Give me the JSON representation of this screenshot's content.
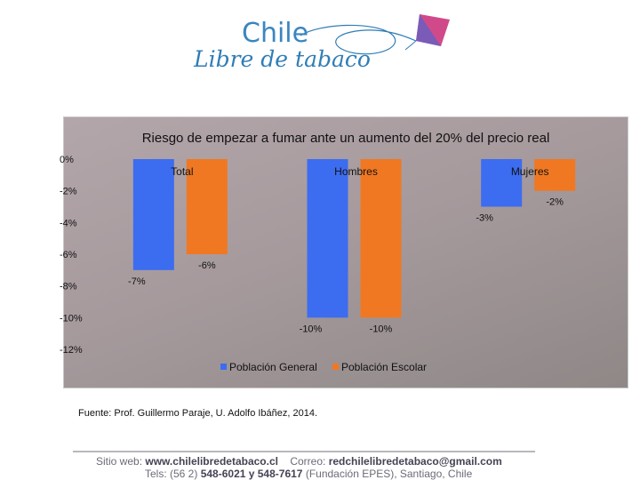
{
  "logo": {
    "line1": "Chile",
    "line2": "Libre de tabaco"
  },
  "chart_data": {
    "type": "bar",
    "title": "Riesgo de empezar a fumar ante un aumento del 20% del precio real",
    "categories": [
      "Total",
      "Hombres",
      "Mujeres"
    ],
    "series": [
      {
        "name": "Población General",
        "color": "#3c6cf0",
        "values": [
          -7,
          -10,
          -3
        ],
        "labels": [
          "-7%",
          "-10%",
          "-3%"
        ]
      },
      {
        "name": "Población Escolar",
        "color": "#f07822",
        "values": [
          -6,
          -10,
          -2
        ],
        "labels": [
          "-6%",
          "-10%",
          "-2%"
        ]
      }
    ],
    "ylim": [
      -12,
      0
    ],
    "yticks": [
      "0%",
      "-2%",
      "-4%",
      "-6%",
      "-8%",
      "-10%",
      "-12%"
    ],
    "legend": "bottom"
  },
  "source": "Fuente: Prof. Guillermo Paraje, U. Adolfo Ibáñez, 2014.",
  "footer": {
    "web_label": "Sitio web:",
    "web_value": "www.chilelibredetabaco.cl",
    "mail_label": "Correo:",
    "mail_value": "redchilelibredetabaco@gmail.com",
    "tel_label": "Tels: (56 2)",
    "tel_values": "548-6021 y 548-7617",
    "tel_suffix": "(Fundación EPES), Santiago, Chile"
  }
}
